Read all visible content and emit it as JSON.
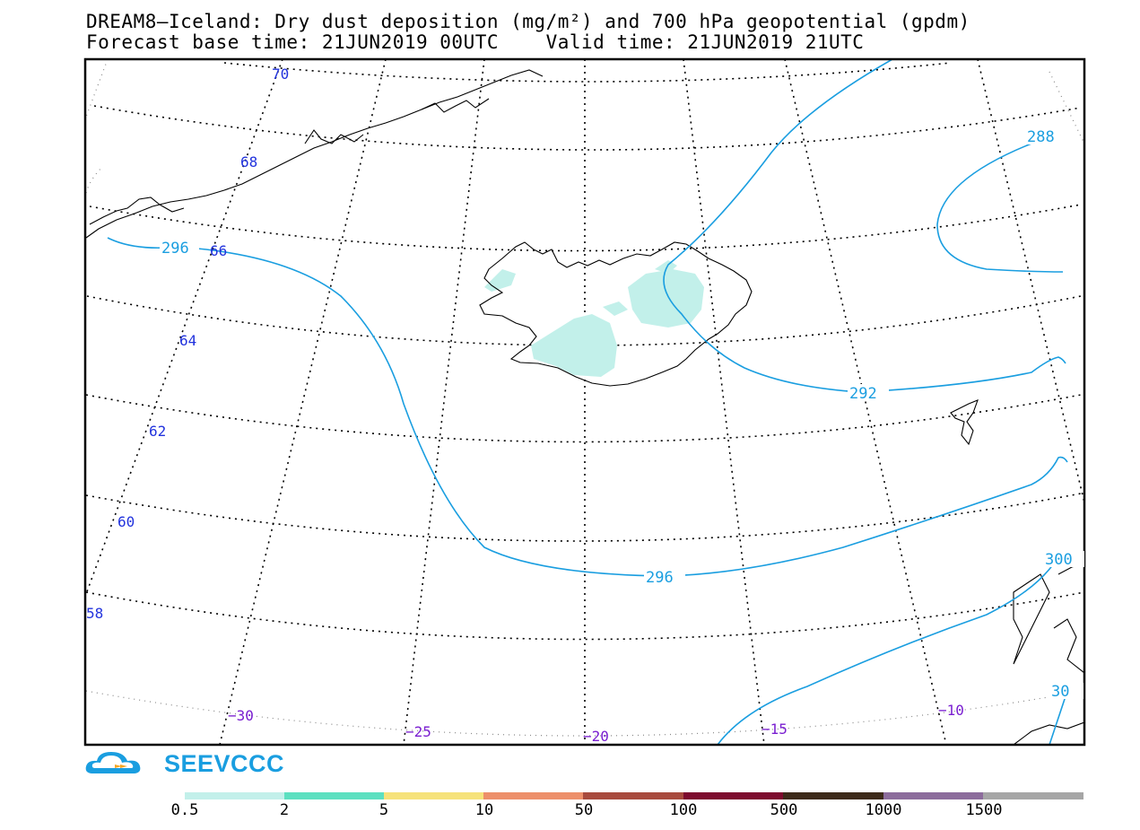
{
  "title": {
    "line1": "DREAM8–Iceland: Dry dust deposition (mg/m²) and 700 hPa geopotential (gpdm)",
    "line2": "Forecast base time: 21JUN2019 00UTC    Valid time: 21JUN2019 21UTC"
  },
  "map": {
    "lat_labels": [
      {
        "text": "70"
      },
      {
        "text": "68"
      },
      {
        "text": "66"
      },
      {
        "text": "64"
      },
      {
        "text": "62"
      },
      {
        "text": "60"
      },
      {
        "text": "58"
      }
    ],
    "lon_labels": [
      {
        "text": "−30"
      },
      {
        "text": "−25"
      },
      {
        "text": "−20"
      },
      {
        "text": "−15"
      },
      {
        "text": "−10"
      }
    ],
    "contour_labels": [
      {
        "text": "296"
      },
      {
        "text": "296"
      },
      {
        "text": "292"
      },
      {
        "text": "288"
      },
      {
        "text": "300"
      },
      {
        "text": "30"
      }
    ],
    "colors": {
      "lat_label": "#2233dd",
      "lon_label": "#7a1fd1",
      "contour": "#1a9ee0",
      "dust_low": "#c2f0ea",
      "coast": "#000000"
    }
  },
  "logo": {
    "text": "SEEVCCC",
    "icon": "cloud-logo-icon"
  },
  "colorbar": {
    "colors": [
      "#c2f0ea",
      "#5ce0c0",
      "#f6e27a",
      "#ed8f6a",
      "#a84a3d",
      "#7d0a2e",
      "#3d2a1a",
      "#8c6c9c",
      "#a6a6a6"
    ],
    "labels": [
      "0.5",
      "2",
      "5",
      "10",
      "50",
      "100",
      "500",
      "1000",
      "1500"
    ]
  }
}
